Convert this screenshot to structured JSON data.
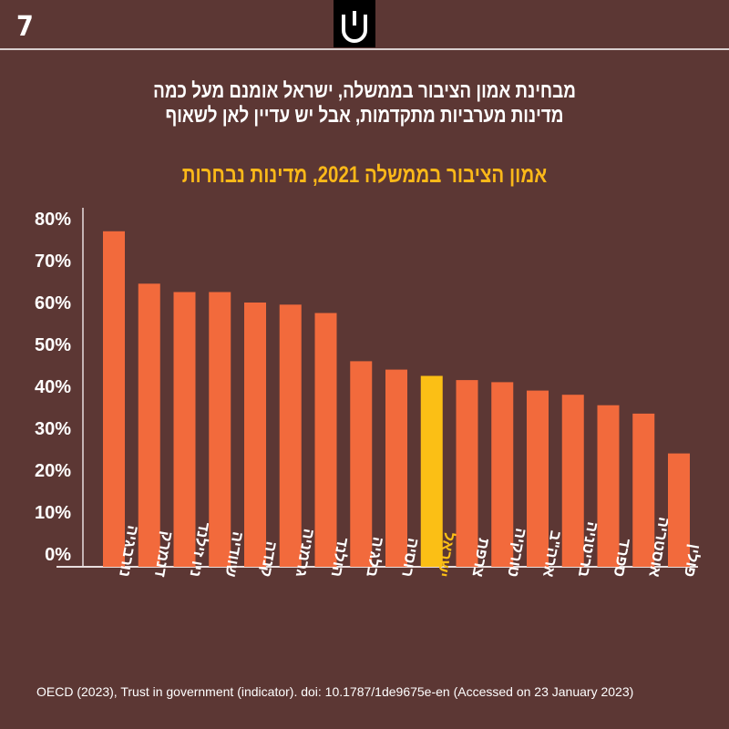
{
  "page_number": "7",
  "headline_line1": "מבחינת אמון הציבור בממשלה, ישראל אומנם מעל כמה",
  "headline_line2": "מדינות מערביות מתקדמות, אבל יש עדיין לאן לשאוף",
  "source": "OECD (2023), Trust in government (indicator). doi: 10.1787/1de9675e-en (Accessed on 23 January 2023)",
  "colors": {
    "background": "#5c3734",
    "bar": "#f26a3c",
    "highlight": "#fbbf15"
  },
  "chart_data": {
    "type": "bar",
    "title": "אמון הציבור בממשלה 2021, מדינות נבחרות",
    "xlabel": "",
    "ylabel": "",
    "ylim": [
      0,
      80
    ],
    "yticks": [
      "0%",
      "10%",
      "20%",
      "30%",
      "40%",
      "50%",
      "60%",
      "70%",
      "80%"
    ],
    "categories": [
      "נורבגיה",
      "דנמרק",
      "ניו זילנד",
      "שוודיה",
      "קנדה",
      "גרמניה",
      "הולנד",
      "בלגיה",
      "רוסיה",
      "ישראל",
      "צרפת",
      "טורקיה",
      "ארה\"ב",
      "בריטניה",
      "ספרד",
      "אוסטריה",
      "פולין"
    ],
    "values": [
      77,
      64.5,
      62.5,
      62.5,
      60,
      59.5,
      57.5,
      46,
      44,
      42.5,
      41.5,
      41,
      39,
      38,
      35.5,
      33.5,
      24
    ],
    "highlight_category": "ישראל",
    "grid": false
  }
}
